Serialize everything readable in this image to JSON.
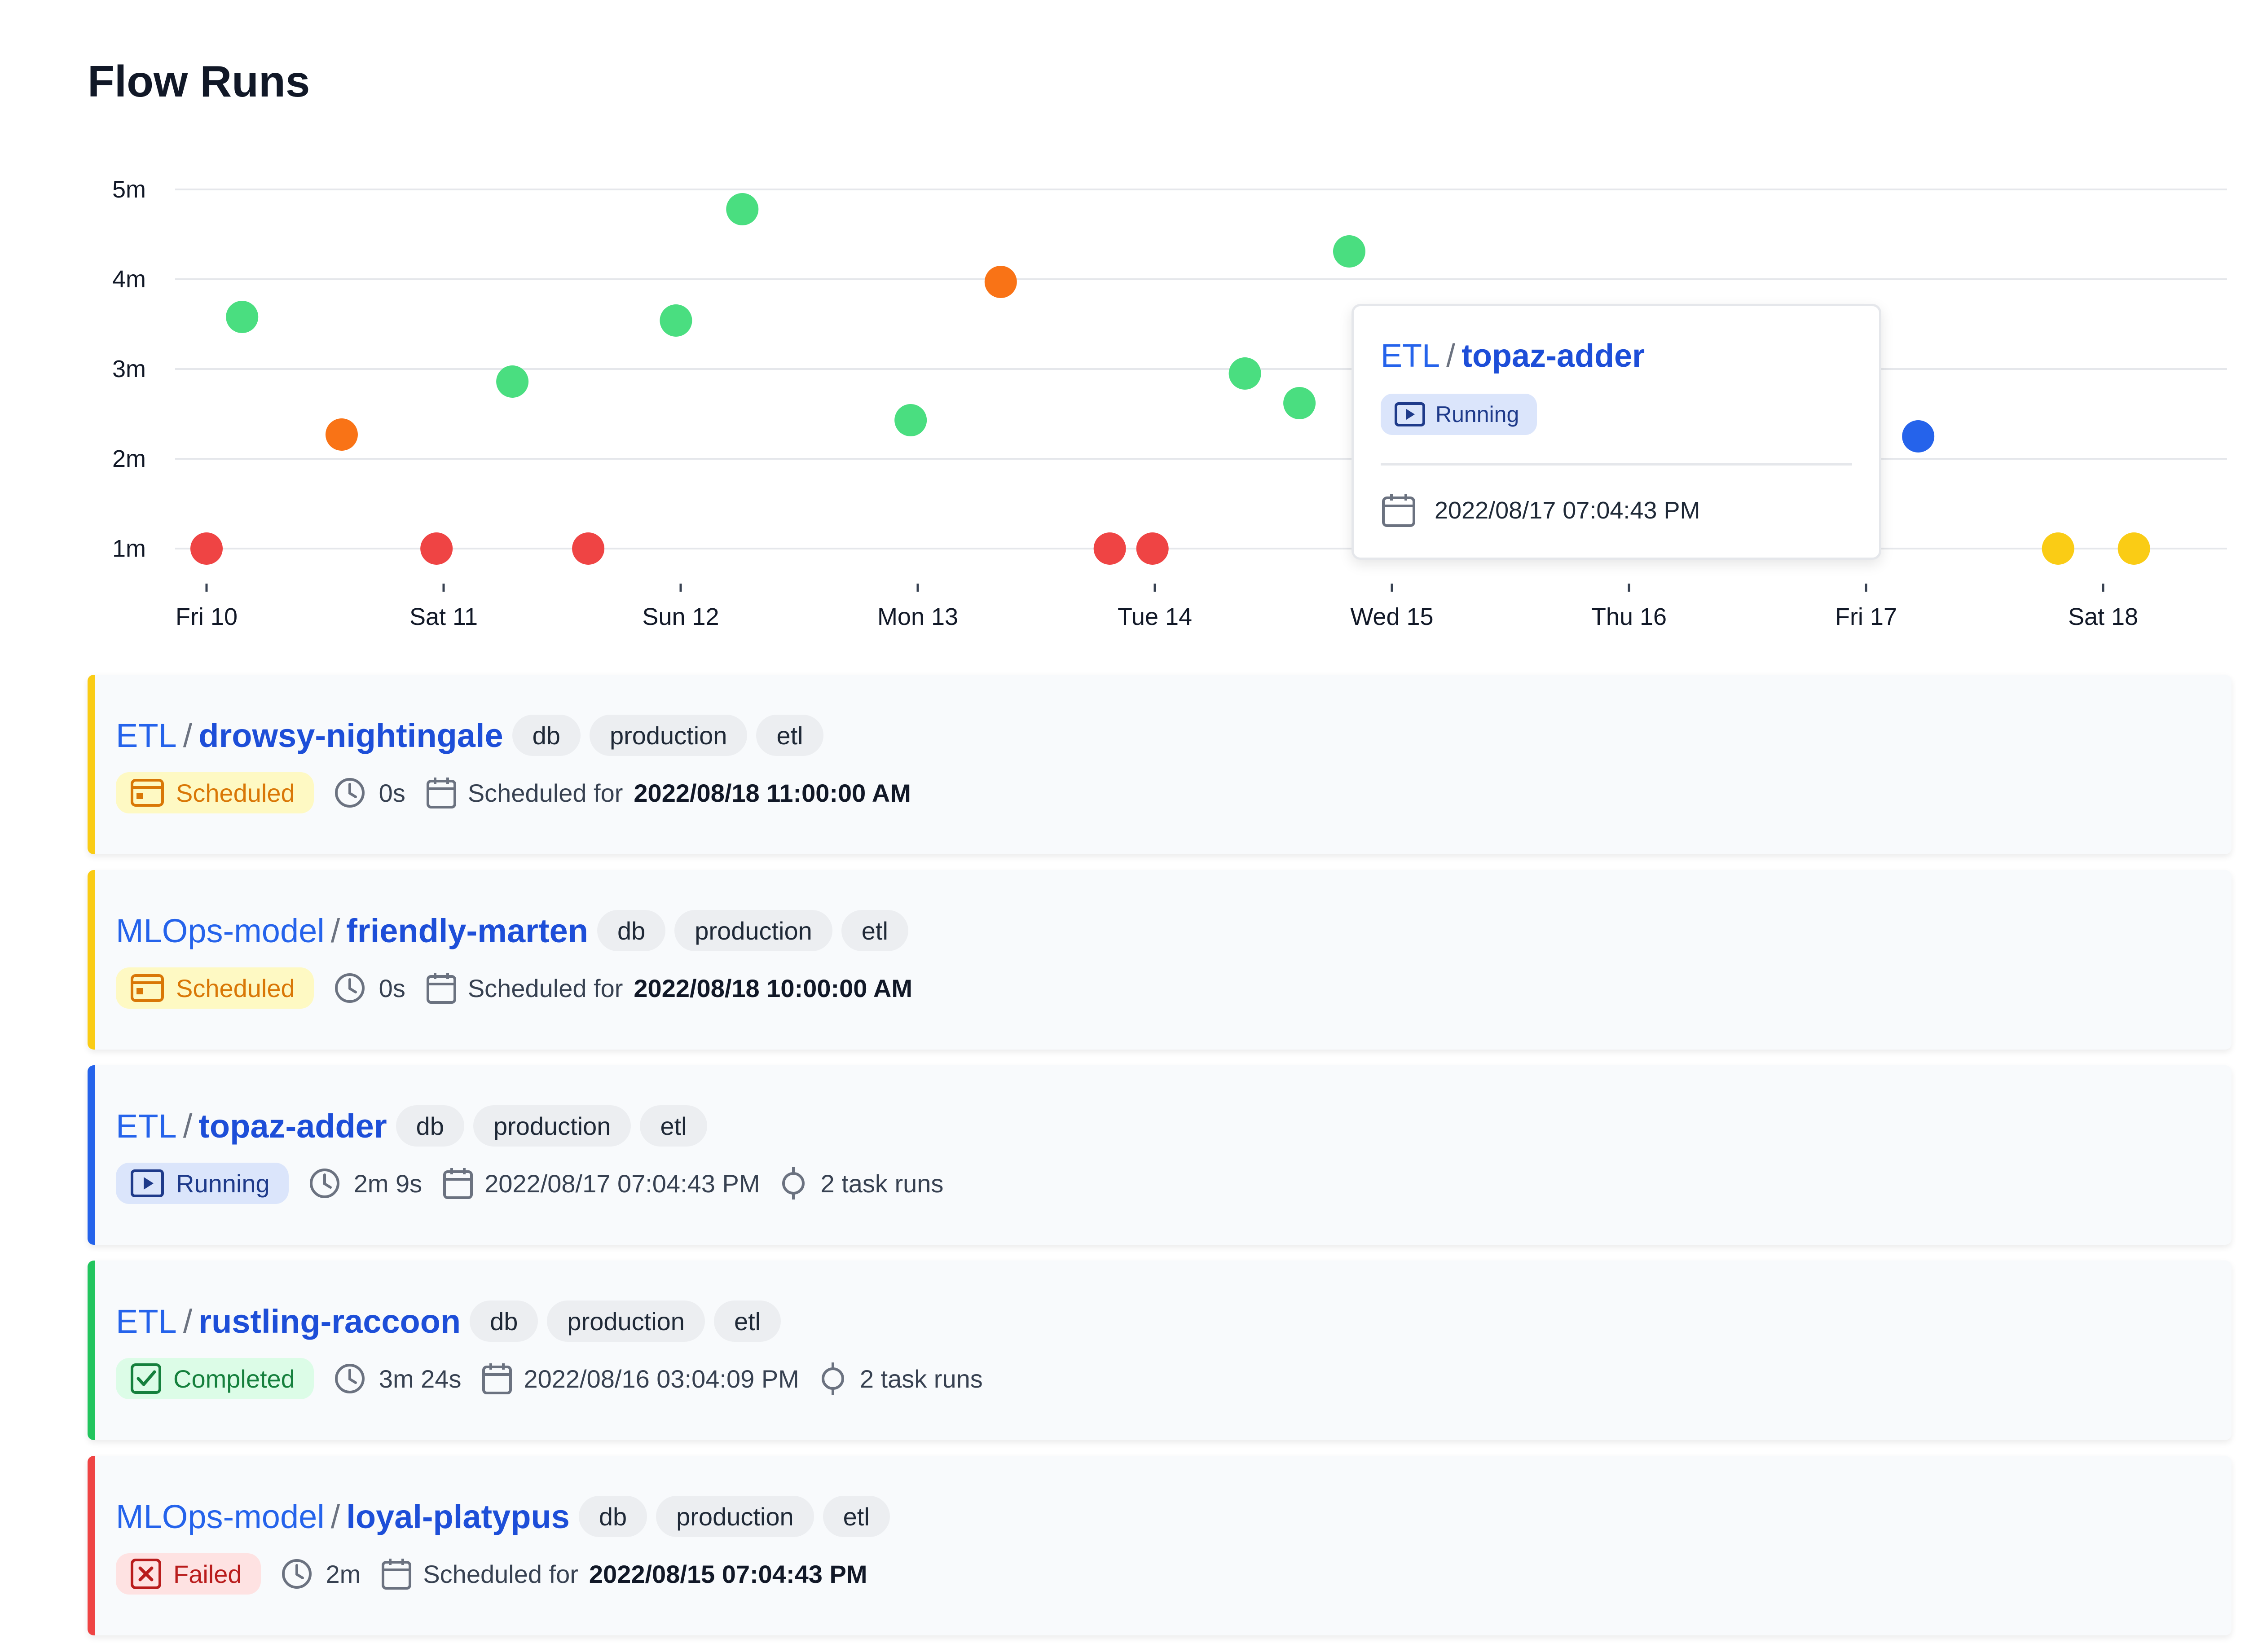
{
  "page": {
    "title": "Flow Runs"
  },
  "chart_data": {
    "type": "scatter",
    "title": "",
    "xlabel": "",
    "ylabel": "",
    "x_ticks": [
      "Fri 10",
      "Sat 11",
      "Sun 12",
      "Mon 13",
      "Tue 14",
      "Wed 15",
      "Thu 16",
      "Fri 17",
      "Sat 18"
    ],
    "y_ticks": [
      "1m",
      "2m",
      "3m",
      "4m",
      "5m"
    ],
    "ylim_minutes": [
      0.5,
      5
    ],
    "grid": true,
    "state_colors": {
      "Completed": "#4ade80",
      "Late": "#f97316",
      "Failed": "#ef4444",
      "Running": "#2563eb",
      "Scheduled": "#facc15"
    },
    "points": [
      {
        "day": 0.0,
        "minutes": 1.0,
        "state": "Failed"
      },
      {
        "day": 0.15,
        "minutes": 3.58,
        "state": "Completed"
      },
      {
        "day": 0.57,
        "minutes": 2.27,
        "state": "Late"
      },
      {
        "day": 0.97,
        "minutes": 1.0,
        "state": "Failed"
      },
      {
        "day": 1.29,
        "minutes": 2.86,
        "state": "Completed"
      },
      {
        "day": 1.61,
        "minutes": 1.0,
        "state": "Failed"
      },
      {
        "day": 1.98,
        "minutes": 3.54,
        "state": "Completed"
      },
      {
        "day": 2.26,
        "minutes": 4.78,
        "state": "Completed"
      },
      {
        "day": 2.97,
        "minutes": 2.43,
        "state": "Completed"
      },
      {
        "day": 3.35,
        "minutes": 3.97,
        "state": "Late"
      },
      {
        "day": 3.81,
        "minutes": 1.0,
        "state": "Failed"
      },
      {
        "day": 3.99,
        "minutes": 1.0,
        "state": "Failed"
      },
      {
        "day": 4.38,
        "minutes": 2.95,
        "state": "Completed"
      },
      {
        "day": 4.61,
        "minutes": 2.62,
        "state": "Completed"
      },
      {
        "day": 4.82,
        "minutes": 4.31,
        "state": "Completed"
      },
      {
        "day": 7.22,
        "minutes": 2.25,
        "state": "Running"
      },
      {
        "day": 7.81,
        "minutes": 1.0,
        "state": "Scheduled"
      },
      {
        "day": 8.13,
        "minutes": 1.0,
        "state": "Scheduled"
      }
    ]
  },
  "tooltip": {
    "flow": "ETL",
    "separator": "/",
    "run": "topaz-adder",
    "state": "Running",
    "date": "2022/08/17 07:04:43 PM"
  },
  "runs": [
    {
      "flow": "ETL",
      "separator": "/",
      "run": "drowsy-nightingale",
      "tags": [
        "db",
        "production",
        "etl"
      ],
      "state": "Scheduled",
      "duration": "0s",
      "date_prefix": "Scheduled for",
      "date": "2022/08/18 11:00:00 AM",
      "task_runs": "",
      "colors": {
        "bar": "#facc15",
        "badge_bg": "#fef9c3",
        "badge_fg": "#d97706"
      }
    },
    {
      "flow": "MLOps-model",
      "separator": "/",
      "run": "friendly-marten",
      "tags": [
        "db",
        "production",
        "etl"
      ],
      "state": "Scheduled",
      "duration": "0s",
      "date_prefix": "Scheduled for",
      "date": "2022/08/18 10:00:00 AM",
      "task_runs": "",
      "colors": {
        "bar": "#facc15",
        "badge_bg": "#fef9c3",
        "badge_fg": "#d97706"
      }
    },
    {
      "flow": "ETL",
      "separator": "/",
      "run": "topaz-adder",
      "tags": [
        "db",
        "production",
        "etl"
      ],
      "state": "Running",
      "duration": "2m 9s",
      "date_prefix": "",
      "date": "2022/08/17 07:04:43 PM",
      "task_runs": "2 task runs",
      "colors": {
        "bar": "#2563eb",
        "badge_bg": "#dbe5fb",
        "badge_fg": "#1e3a8a"
      }
    },
    {
      "flow": "ETL",
      "separator": "/",
      "run": "rustling-raccoon",
      "tags": [
        "db",
        "production",
        "etl"
      ],
      "state": "Completed",
      "duration": "3m 24s",
      "date_prefix": "",
      "date": "2022/08/16 03:04:09 PM",
      "task_runs": "2 task runs",
      "colors": {
        "bar": "#22c55e",
        "badge_bg": "#dcfce7",
        "badge_fg": "#15803d"
      }
    },
    {
      "flow": "MLOps-model",
      "separator": "/",
      "run": "loyal-platypus",
      "tags": [
        "db",
        "production",
        "etl"
      ],
      "state": "Failed",
      "duration": "2m",
      "date_prefix": "Scheduled for",
      "date": "2022/08/15 07:04:43 PM",
      "task_runs": "",
      "colors": {
        "bar": "#ef4444",
        "badge_bg": "#fee2e2",
        "badge_fg": "#b91c1c"
      }
    }
  ]
}
